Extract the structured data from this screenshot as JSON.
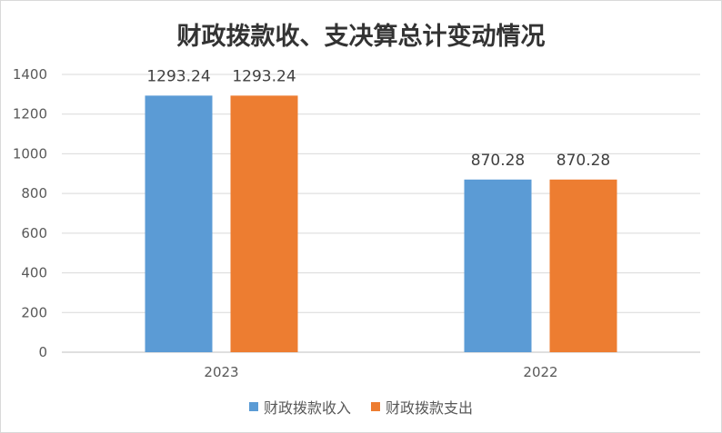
{
  "chart_data": {
    "type": "bar",
    "title": "财政拨款收、支决算总计变动情况",
    "categories": [
      "2023",
      "2022"
    ],
    "series": [
      {
        "name": "财政拨款收入",
        "color": "#5b9bd5",
        "values": [
          1293.24,
          870.28
        ]
      },
      {
        "name": "财政拨款支出",
        "color": "#ed7d31",
        "values": [
          1293.24,
          870.28
        ]
      }
    ],
    "data_labels": [
      [
        "1293.24",
        "870.28"
      ],
      [
        "1293.24",
        "870.28"
      ]
    ],
    "yticks": [
      "0",
      "200",
      "400",
      "600",
      "800",
      "1000",
      "1200",
      "1400"
    ],
    "ylim": [
      0,
      1400
    ],
    "grid": true,
    "legend_position": "bottom"
  }
}
